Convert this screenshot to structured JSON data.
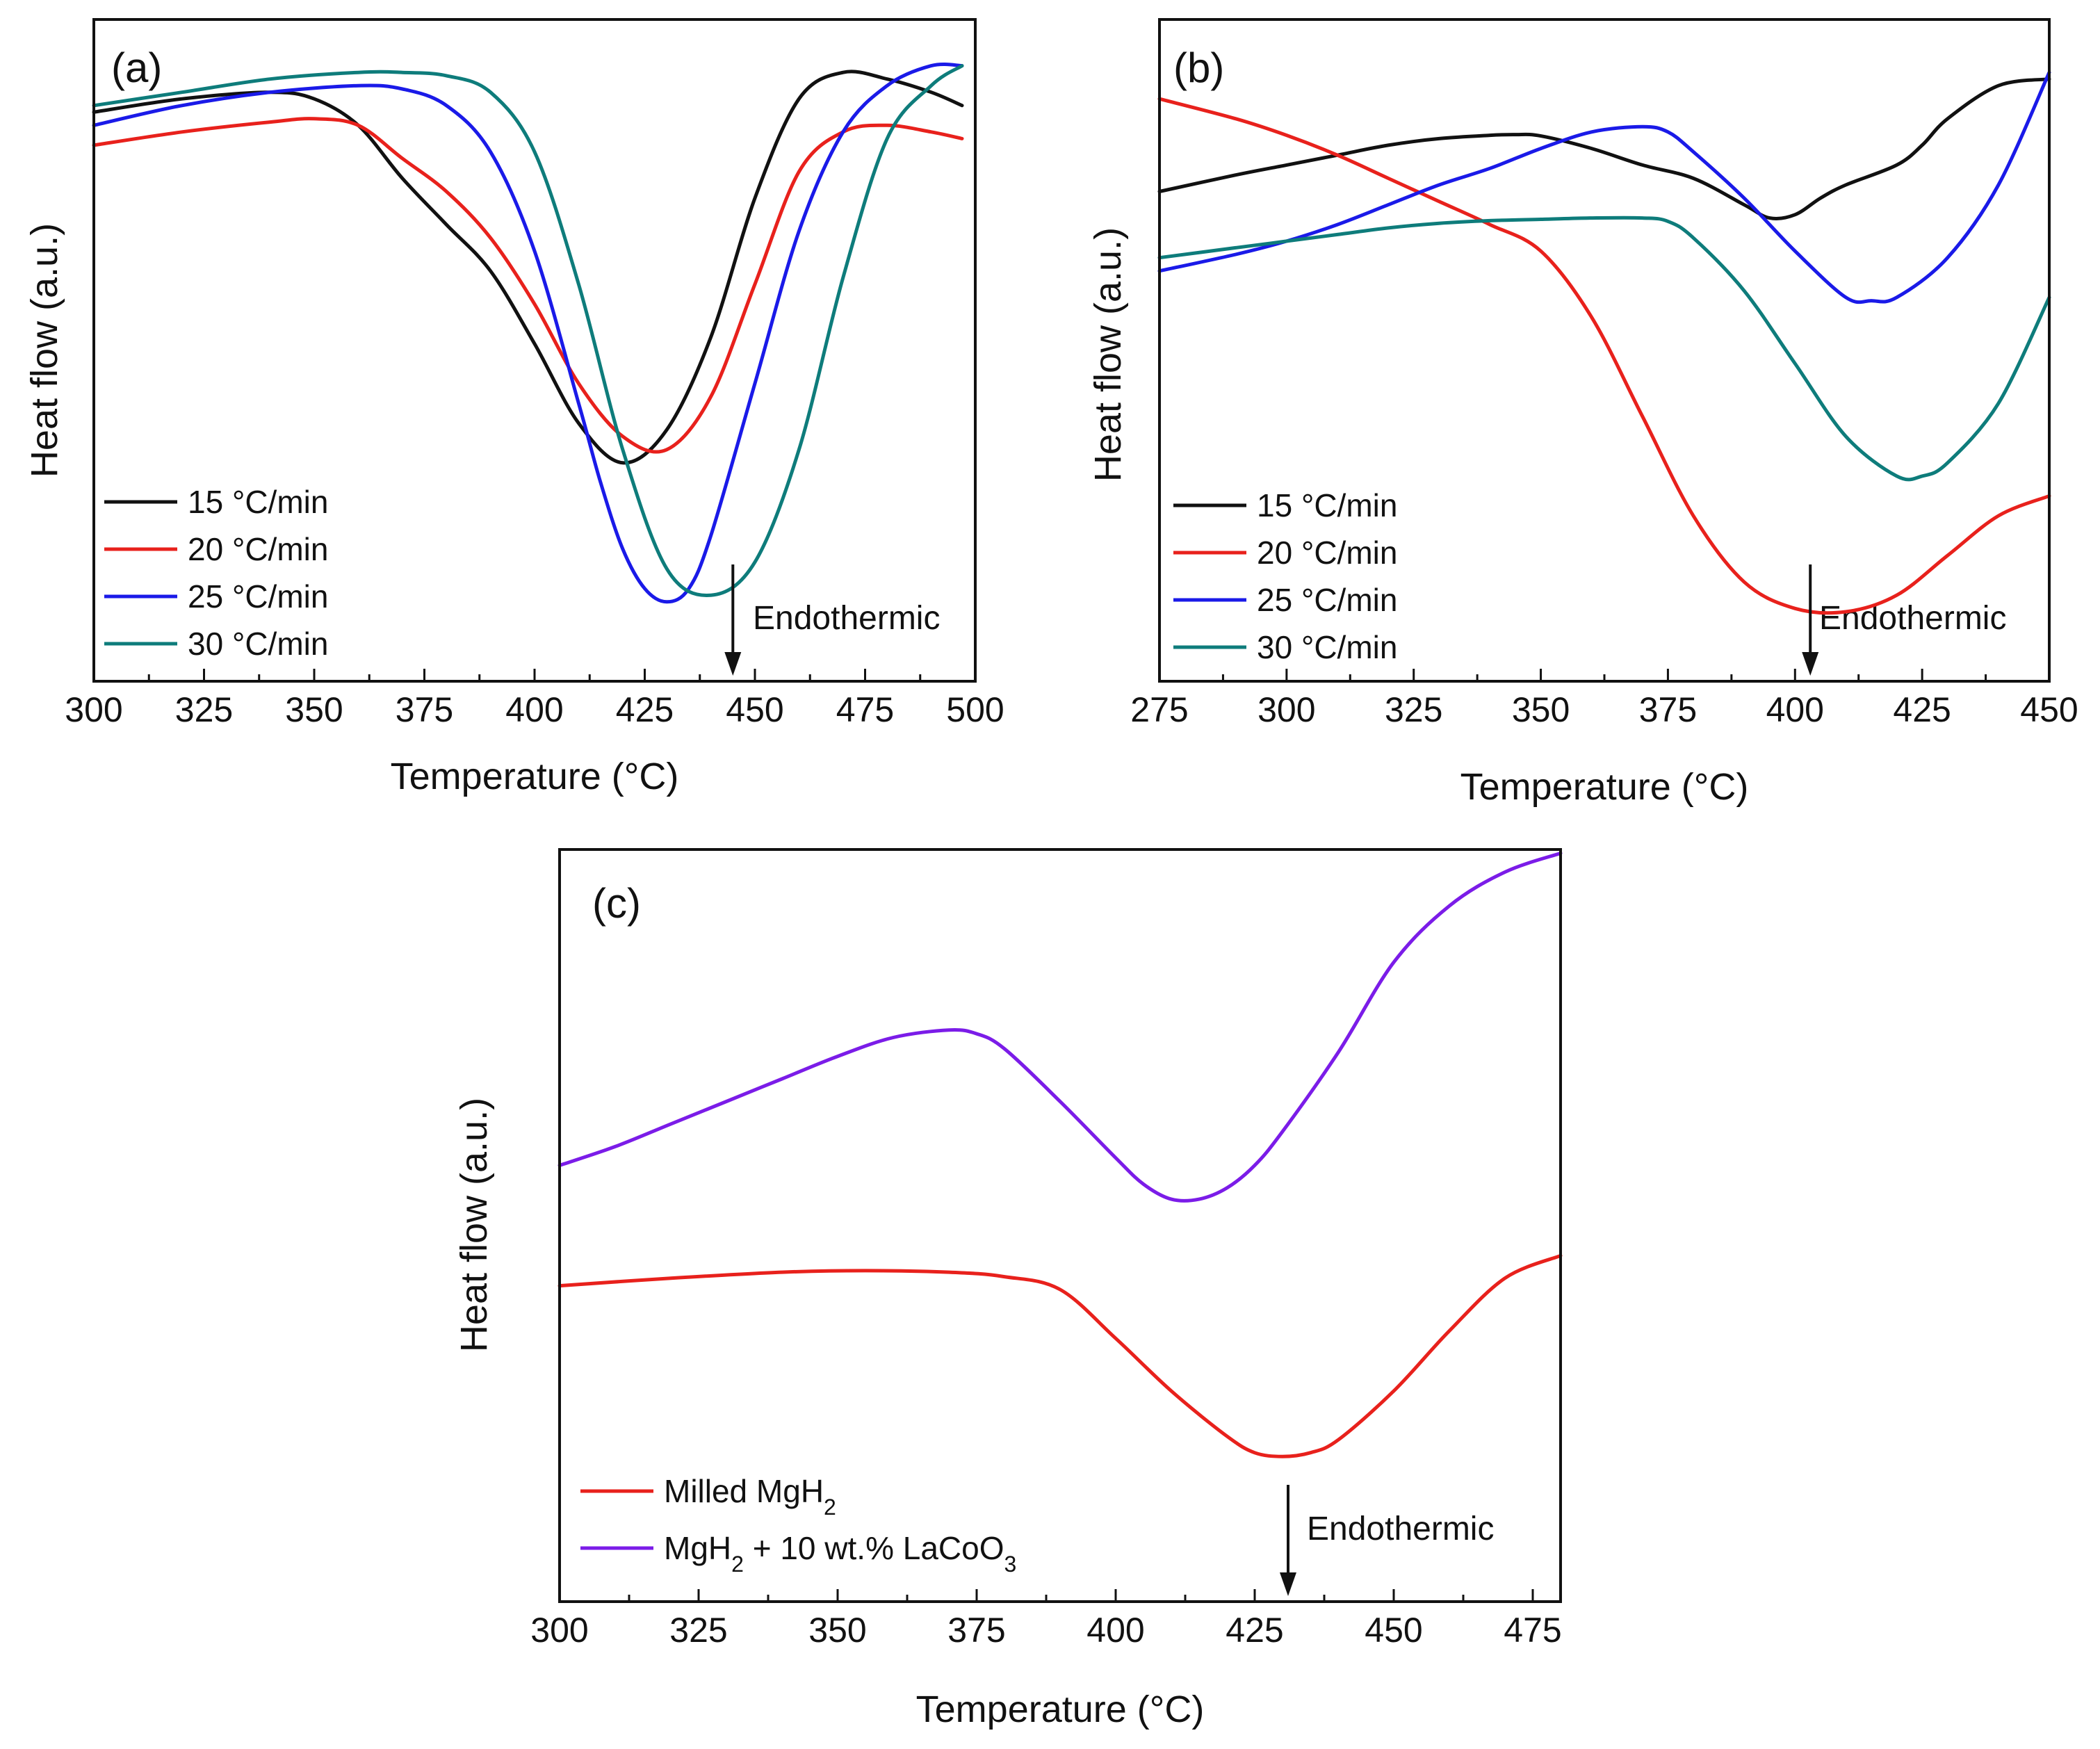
{
  "chart_data": [
    {
      "type": "line",
      "panel_label": "(a)",
      "xlabel": "Temperature (°C)",
      "ylabel": "Heat flow (a.u.)",
      "xlim": [
        300,
        500
      ],
      "ylim": [
        0,
        100
      ],
      "xticks": [
        300,
        325,
        350,
        375,
        400,
        425,
        450,
        475,
        500
      ],
      "annotation": {
        "text": "Endothermic",
        "x": 445
      },
      "legend_position": "lower-left",
      "series": [
        {
          "name": "15 °C/min",
          "color": "#111111",
          "x": [
            300,
            320,
            340,
            350,
            360,
            370,
            380,
            390,
            400,
            410,
            420,
            430,
            440,
            450,
            460,
            470,
            480,
            490,
            497
          ],
          "y": [
            86,
            88,
            89,
            88,
            84,
            76,
            69,
            62,
            51,
            39,
            33,
            38,
            52,
            73,
            88,
            92,
            91,
            89,
            87
          ]
        },
        {
          "name": "20 °C/min",
          "color": "#e8211c",
          "x": [
            300,
            320,
            340,
            350,
            360,
            370,
            380,
            390,
            400,
            410,
            420,
            430,
            440,
            450,
            460,
            470,
            480,
            490,
            497
          ],
          "y": [
            81,
            83,
            84.5,
            85,
            84,
            79,
            74,
            67,
            57,
            45,
            37,
            35,
            43,
            60,
            77,
            83,
            84,
            83,
            82
          ]
        },
        {
          "name": "25 °C/min",
          "color": "#1a1ae8",
          "x": [
            300,
            320,
            340,
            360,
            370,
            380,
            390,
            400,
            410,
            415,
            420,
            425,
            430,
            435,
            440,
            450,
            460,
            470,
            480,
            490,
            497
          ],
          "y": [
            84,
            87,
            89,
            90,
            89.5,
            87,
            80,
            65,
            42,
            30,
            20,
            14,
            12,
            14,
            22,
            45,
            68,
            83,
            90,
            93,
            93
          ]
        },
        {
          "name": "30 °C/min",
          "color": "#0e7c7b",
          "x": [
            300,
            320,
            340,
            360,
            370,
            380,
            390,
            400,
            410,
            420,
            430,
            440,
            450,
            460,
            470,
            480,
            490,
            497
          ],
          "y": [
            87,
            89,
            91,
            92,
            92,
            91.5,
            89,
            80,
            60,
            35,
            17,
            13,
            18,
            35,
            61,
            82,
            90,
            93
          ]
        }
      ]
    },
    {
      "type": "line",
      "panel_label": "(b)",
      "xlabel": "Temperature (°C)",
      "ylabel": "Heat flow (a.u.)",
      "xlim": [
        275,
        450
      ],
      "ylim": [
        0,
        100
      ],
      "xticks": [
        275,
        300,
        325,
        350,
        375,
        400,
        425,
        450
      ],
      "annotation": {
        "text": "Endothermic",
        "x": 403
      },
      "legend_position": "lower-left",
      "series": [
        {
          "name": "15 °C/min",
          "color": "#111111",
          "x": [
            275,
            290,
            300,
            310,
            320,
            330,
            340,
            345,
            350,
            360,
            370,
            380,
            390,
            395,
            400,
            405,
            410,
            420,
            425,
            430,
            440,
            450
          ],
          "y": [
            74,
            76.5,
            78,
            79.5,
            81,
            82,
            82.5,
            82.6,
            82.4,
            80.5,
            78,
            76,
            72,
            70,
            70.5,
            73,
            75,
            78,
            81,
            85,
            90,
            91
          ]
        },
        {
          "name": "20 °C/min",
          "color": "#e8211c",
          "x": [
            275,
            290,
            300,
            310,
            320,
            330,
            340,
            350,
            360,
            370,
            380,
            390,
            400,
            410,
            420,
            430,
            440,
            450
          ],
          "y": [
            88,
            85,
            82.5,
            79.5,
            76,
            72.5,
            69,
            65,
            55,
            40,
            25,
            15,
            11,
            10.5,
            13,
            19,
            25,
            28
          ]
        },
        {
          "name": "25 °C/min",
          "color": "#1a1ae8",
          "x": [
            275,
            290,
            300,
            310,
            320,
            330,
            340,
            350,
            360,
            370,
            375,
            380,
            390,
            400,
            410,
            415,
            420,
            430,
            440,
            450
          ],
          "y": [
            62,
            64.5,
            66.5,
            69,
            72,
            75,
            77.5,
            80.5,
            83,
            83.8,
            83,
            80,
            73,
            65,
            58,
            57.5,
            58,
            64,
            75,
            92
          ]
        },
        {
          "name": "30 °C/min",
          "color": "#0e7c7b",
          "x": [
            275,
            290,
            300,
            310,
            320,
            330,
            340,
            350,
            360,
            370,
            375,
            380,
            390,
            400,
            410,
            420,
            425,
            430,
            440,
            450
          ],
          "y": [
            64,
            65.5,
            66.5,
            67.5,
            68.5,
            69.2,
            69.6,
            69.8,
            70,
            70,
            69.5,
            67,
            59,
            48,
            37,
            31,
            31,
            33,
            42,
            58
          ]
        }
      ]
    },
    {
      "type": "line",
      "panel_label": "(c)",
      "xlabel": "Temperature (°C)",
      "ylabel": "Heat flow (a.u.)",
      "xlim": [
        300,
        480
      ],
      "ylim": [
        0,
        100
      ],
      "xticks": [
        300,
        325,
        350,
        375,
        400,
        425,
        450,
        475
      ],
      "annotation": {
        "text": "Endothermic",
        "x": 431
      },
      "legend_position": "lower-left",
      "series": [
        {
          "name_parts": [
            "Milled MgH",
            "2",
            ""
          ],
          "color": "#e8211c",
          "x": [
            300,
            320,
            340,
            355,
            370,
            380,
            390,
            400,
            410,
            420,
            425,
            430,
            435,
            440,
            450,
            460,
            470,
            480
          ],
          "y": [
            42,
            43,
            43.8,
            44,
            43.8,
            43.2,
            41.5,
            35,
            28,
            22,
            19.8,
            19.3,
            19.8,
            21.5,
            28,
            36,
            43,
            46
          ]
        },
        {
          "name_parts": [
            "MgH",
            "2",
            " + 10 wt.% LaCoO",
            "3",
            ""
          ],
          "color": "#7b1ce8",
          "x": [
            300,
            310,
            320,
            330,
            340,
            350,
            360,
            370,
            375,
            380,
            390,
            400,
            405,
            410,
            415,
            420,
            425,
            430,
            440,
            450,
            460,
            470,
            480
          ],
          "y": [
            58,
            60.5,
            63.5,
            66.5,
            69.5,
            72.5,
            75,
            76,
            75.5,
            73.5,
            66.5,
            59,
            55.5,
            53.5,
            53.5,
            55,
            58,
            62.5,
            73,
            85,
            92.5,
            97,
            99.5
          ]
        }
      ]
    }
  ]
}
